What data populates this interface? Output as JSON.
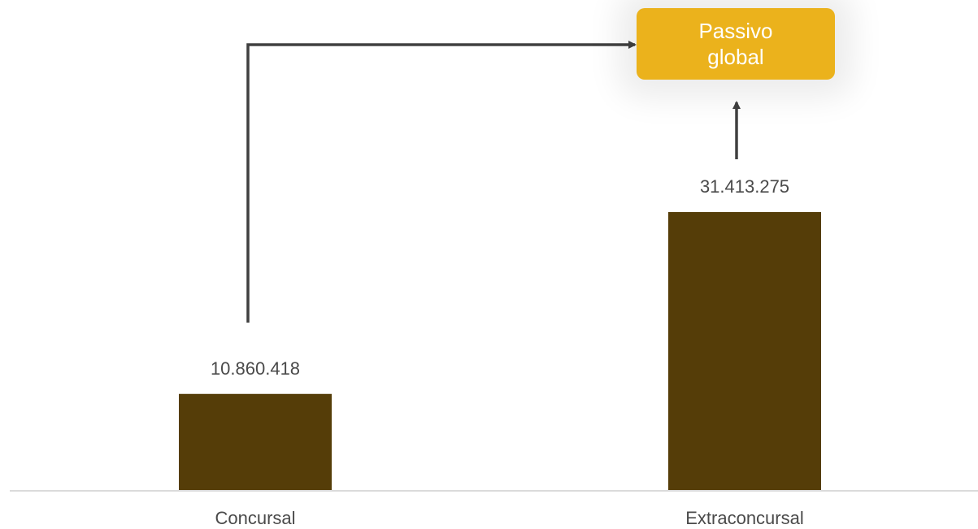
{
  "chart_data": {
    "type": "bar",
    "categories": [
      "Concursal",
      "Extraconcursal"
    ],
    "values": [
      10860418,
      31413275
    ],
    "value_labels": [
      "10.860.418",
      "31.413.275"
    ],
    "title": "",
    "xlabel": "",
    "ylabel": "",
    "ylim": [
      0,
      41000000
    ],
    "grid": false,
    "legend": "none",
    "annotations": [
      {
        "text": "Passivo global",
        "type": "callout",
        "sources": [
          "Concursal",
          "Extraconcursal"
        ]
      }
    ]
  },
  "colors": {
    "bar": "#553d08",
    "callout_bg": "#ebb21c",
    "callout_text": "#ffffff",
    "arrow": "#404040",
    "axis": "#cfcfcf",
    "label": "#4a4a4a"
  }
}
